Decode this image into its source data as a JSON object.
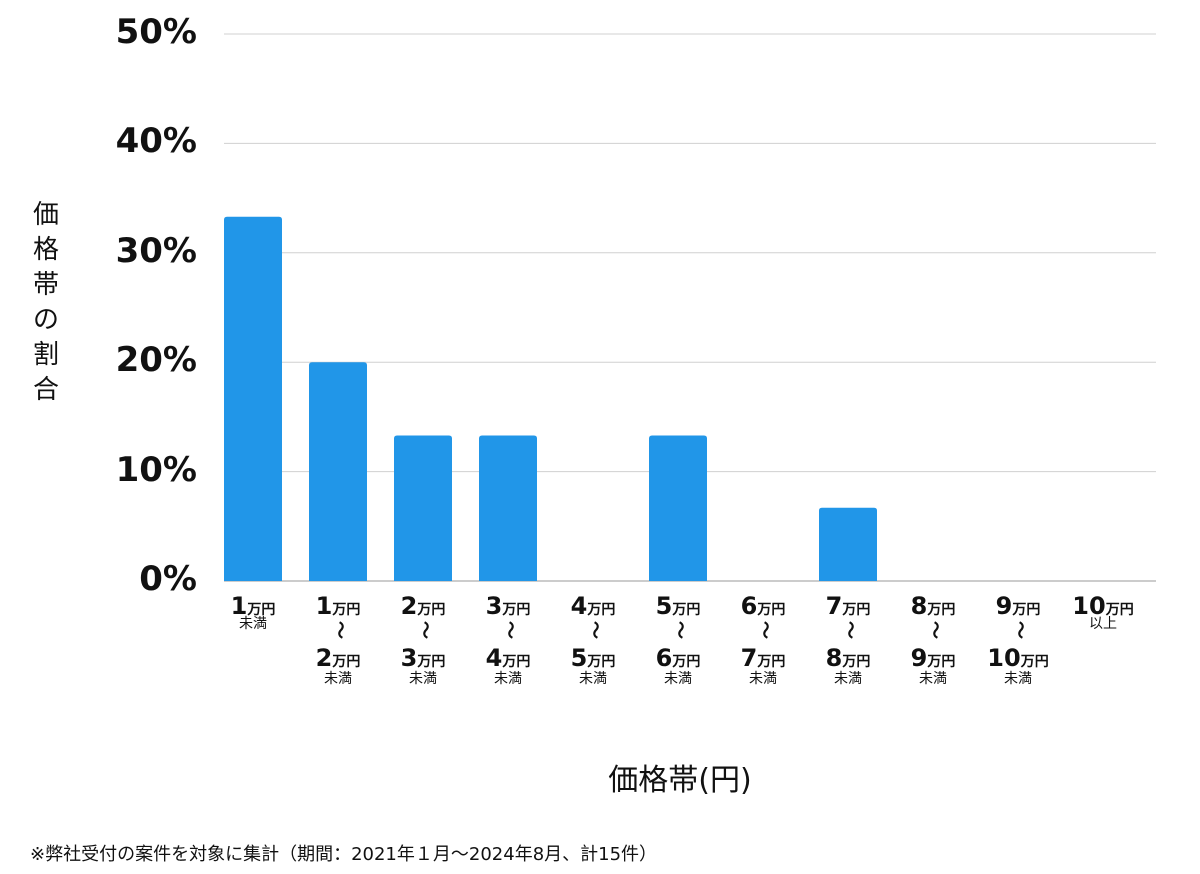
{
  "chart_data": {
    "type": "bar",
    "title": "",
    "xlabel": "価格帯(円)",
    "ylabel": "価格帯の割合",
    "ylim": [
      0,
      50
    ],
    "yticks": [
      "0%",
      "10%",
      "20%",
      "30%",
      "40%",
      "50%"
    ],
    "grid": true,
    "bar_color": "#2196e8",
    "categories": [
      {
        "from": "1",
        "to": "",
        "unit": "万円",
        "note": "未満"
      },
      {
        "from": "1",
        "to": "2",
        "unit": "万円",
        "note": "未満"
      },
      {
        "from": "2",
        "to": "3",
        "unit": "万円",
        "note": "未満"
      },
      {
        "from": "3",
        "to": "4",
        "unit": "万円",
        "note": "未満"
      },
      {
        "from": "4",
        "to": "5",
        "unit": "万円",
        "note": "未満"
      },
      {
        "from": "5",
        "to": "6",
        "unit": "万円",
        "note": "未満"
      },
      {
        "from": "6",
        "to": "7",
        "unit": "万円",
        "note": "未満"
      },
      {
        "from": "7",
        "to": "8",
        "unit": "万円",
        "note": "未満"
      },
      {
        "from": "8",
        "to": "9",
        "unit": "万円",
        "note": "未満"
      },
      {
        "from": "9",
        "to": "10",
        "unit": "万円",
        "note": "未満"
      },
      {
        "from": "10",
        "to": "",
        "unit": "万円",
        "note": "以上"
      }
    ],
    "range_separator": "〜",
    "values": [
      33.3,
      20.0,
      13.3,
      13.3,
      0,
      13.3,
      0,
      6.7,
      0,
      0,
      0
    ]
  },
  "footnote": "※弊社受付の案件を対象に集計（期間：2021年１月〜2024年8月、計15件）"
}
